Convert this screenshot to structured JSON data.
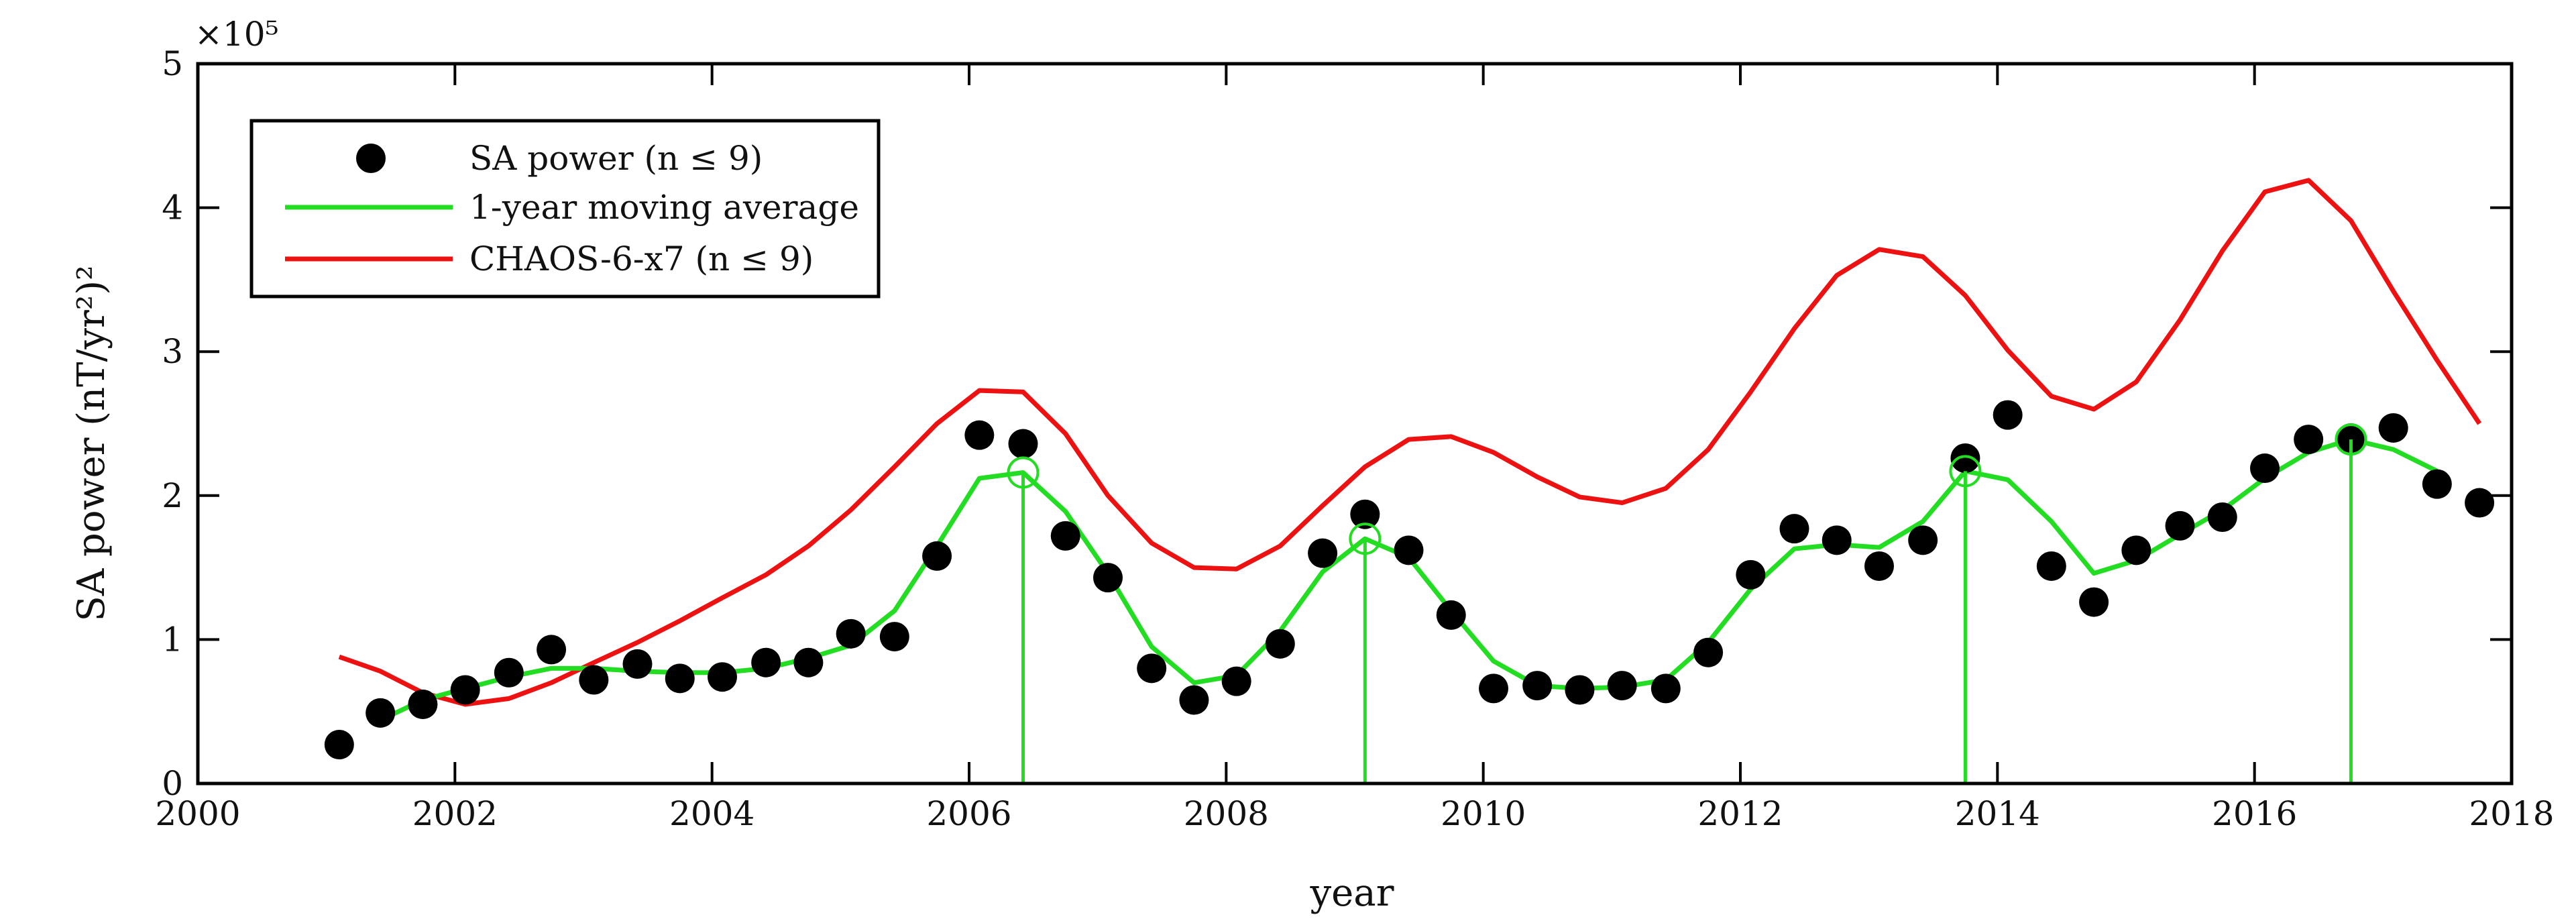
{
  "chart_data": {
    "type": "scatter",
    "xlabel": "year",
    "ylabel": "SA power (nT/yr²)²",
    "y_exponent_label": "×10⁵",
    "xlim": [
      2000,
      2018
    ],
    "ylim": [
      0,
      5
    ],
    "x_ticks": [
      2000,
      2002,
      2004,
      2006,
      2008,
      2010,
      2012,
      2014,
      2016,
      2018
    ],
    "y_ticks": [
      0,
      1,
      2,
      3,
      4,
      5
    ],
    "grid": false,
    "legend_position": "top-left",
    "legend": [
      {
        "label": "SA power (n ≤ 9)",
        "style": "black-dot"
      },
      {
        "label": "1-year moving average",
        "style": "green-line"
      },
      {
        "label": "CHAOS-6-x7 (n ≤ 9)",
        "style": "red-line"
      }
    ],
    "colors": {
      "points": "#000000",
      "moving_average": "#22dd22",
      "chaos": "#ee1111",
      "axes": "#000000"
    },
    "series": [
      {
        "name": "SA power (n ≤ 9)",
        "kind": "scatter",
        "x": [
          2001.1,
          2001.42,
          2001.75,
          2002.08,
          2002.42,
          2002.75,
          2003.08,
          2003.42,
          2003.75,
          2004.08,
          2004.42,
          2004.75,
          2005.08,
          2005.42,
          2005.75,
          2006.08,
          2006.42,
          2006.75,
          2007.08,
          2007.42,
          2007.75,
          2008.08,
          2008.42,
          2008.75,
          2009.08,
          2009.42,
          2009.75,
          2010.08,
          2010.42,
          2010.75,
          2011.08,
          2011.42,
          2011.75,
          2012.08,
          2012.42,
          2012.75,
          2013.08,
          2013.42,
          2013.75,
          2014.08,
          2014.42,
          2014.75,
          2015.08,
          2015.42,
          2015.75,
          2016.08,
          2016.42,
          2016.75,
          2017.08,
          2017.42,
          2017.75
        ],
        "y": [
          0.27,
          0.49,
          0.55,
          0.65,
          0.77,
          0.93,
          0.72,
          0.83,
          0.73,
          0.74,
          0.84,
          0.84,
          1.04,
          1.02,
          1.58,
          2.42,
          2.36,
          1.72,
          1.43,
          0.8,
          0.58,
          0.71,
          0.97,
          1.6,
          1.87,
          1.62,
          1.17,
          0.66,
          0.68,
          0.65,
          0.68,
          0.66,
          0.91,
          1.45,
          1.77,
          1.69,
          1.51,
          1.69,
          2.26,
          2.56,
          1.51,
          1.26,
          1.62,
          1.79,
          1.85,
          2.19,
          2.39,
          2.4,
          2.47,
          2.08,
          1.95
        ]
      },
      {
        "name": "1-year moving average",
        "kind": "line",
        "x": [
          2001.42,
          2001.75,
          2002.08,
          2002.42,
          2002.75,
          2003.08,
          2003.42,
          2003.75,
          2004.08,
          2004.42,
          2004.75,
          2005.08,
          2005.42,
          2005.75,
          2006.08,
          2006.42,
          2006.75,
          2007.08,
          2007.42,
          2007.75,
          2008.08,
          2008.42,
          2008.75,
          2009.08,
          2009.42,
          2009.75,
          2010.08,
          2010.42,
          2010.75,
          2011.08,
          2011.42,
          2011.75,
          2012.08,
          2012.42,
          2012.75,
          2013.08,
          2013.42,
          2013.75,
          2014.08,
          2014.42,
          2014.75,
          2015.08,
          2015.42,
          2015.75,
          2016.08,
          2016.42,
          2016.75,
          2017.08,
          2017.42
        ],
        "y": [
          0.44,
          0.58,
          0.66,
          0.74,
          0.8,
          0.8,
          0.78,
          0.77,
          0.77,
          0.8,
          0.87,
          0.96,
          1.2,
          1.65,
          2.12,
          2.16,
          1.89,
          1.46,
          0.95,
          0.7,
          0.75,
          1.06,
          1.47,
          1.7,
          1.57,
          1.2,
          0.85,
          0.68,
          0.66,
          0.67,
          0.72,
          0.98,
          1.35,
          1.63,
          1.66,
          1.64,
          1.82,
          2.17,
          2.11,
          1.82,
          1.46,
          1.55,
          1.73,
          1.9,
          2.12,
          2.3,
          2.39,
          2.32,
          2.17
        ]
      },
      {
        "name": "CHAOS-6-x7 (n ≤ 9)",
        "kind": "line",
        "x": [
          2001.1,
          2001.42,
          2001.75,
          2002.08,
          2002.42,
          2002.75,
          2003.08,
          2003.42,
          2003.75,
          2004.08,
          2004.42,
          2004.75,
          2005.08,
          2005.42,
          2005.75,
          2006.08,
          2006.42,
          2006.75,
          2007.08,
          2007.42,
          2007.75,
          2008.08,
          2008.42,
          2008.75,
          2009.08,
          2009.42,
          2009.75,
          2010.08,
          2010.42,
          2010.75,
          2011.08,
          2011.42,
          2011.75,
          2012.08,
          2012.42,
          2012.75,
          2013.08,
          2013.42,
          2013.75,
          2014.08,
          2014.42,
          2014.75,
          2015.08,
          2015.42,
          2015.75,
          2016.08,
          2016.42,
          2016.75,
          2017.08,
          2017.42,
          2017.75
        ],
        "y": [
          0.88,
          0.78,
          0.63,
          0.55,
          0.59,
          0.7,
          0.84,
          0.98,
          1.13,
          1.29,
          1.45,
          1.65,
          1.9,
          2.2,
          2.5,
          2.73,
          2.72,
          2.43,
          2.0,
          1.67,
          1.5,
          1.49,
          1.65,
          1.93,
          2.2,
          2.39,
          2.41,
          2.3,
          2.13,
          1.99,
          1.95,
          2.05,
          2.32,
          2.72,
          3.16,
          3.53,
          3.71,
          3.66,
          3.39,
          3.01,
          2.69,
          2.6,
          2.79,
          3.22,
          3.7,
          4.11,
          4.19,
          3.91,
          3.42,
          2.94,
          2.5
        ]
      },
      {
        "name": "",
        "kind": "markers",
        "x": [
          2006.42,
          2009.08,
          2013.75,
          2016.75
        ],
        "y": [
          2.16,
          1.7,
          2.17,
          2.39
        ]
      }
    ]
  }
}
